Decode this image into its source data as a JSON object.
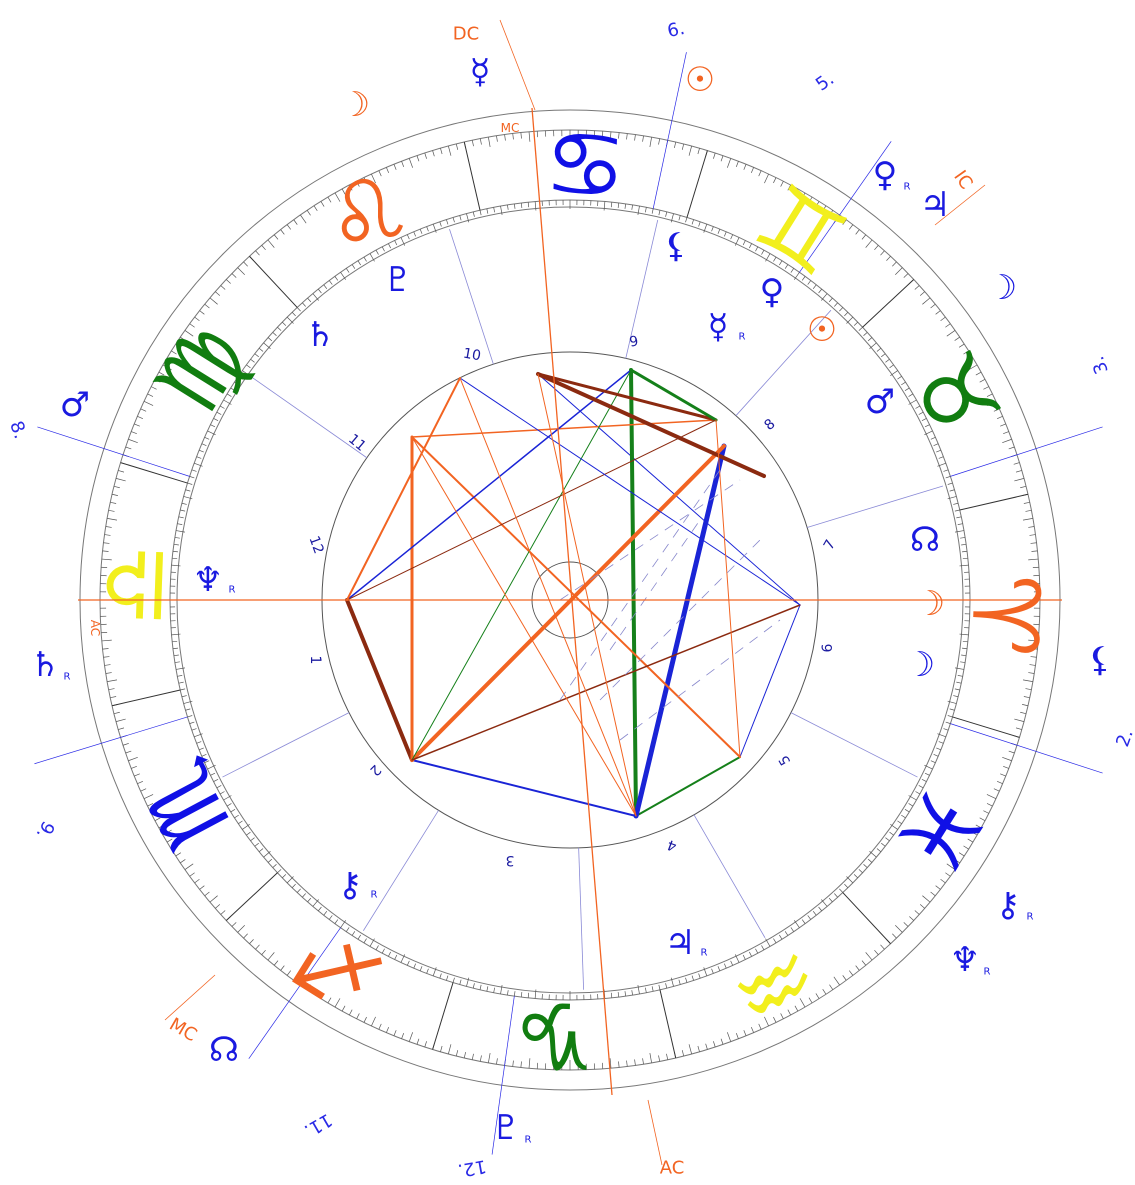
{
  "colors": {
    "fire": "#f26422",
    "earth": "#117d10",
    "air": "#f2ef1d",
    "water": "#1010e6",
    "angle": "#f26422",
    "outer_house": "#2a2ae6",
    "aspect_blue": "#1a24d6",
    "aspect_green": "#15801a",
    "aspect_orange": "#f26422",
    "aspect_brown": "#8b2a10",
    "tick": "#555555"
  },
  "zodiac": [
    {
      "sign": "Cancer",
      "glyph": "♋",
      "element": "water"
    },
    {
      "sign": "Gemini",
      "glyph": "♊",
      "element": "air"
    },
    {
      "sign": "Taurus",
      "glyph": "♉",
      "element": "earth"
    },
    {
      "sign": "Aries",
      "glyph": "♈",
      "element": "fire"
    },
    {
      "sign": "Pisces",
      "glyph": "♓",
      "element": "water"
    },
    {
      "sign": "Aquarius",
      "glyph": "♒",
      "element": "air"
    },
    {
      "sign": "Capricorn",
      "glyph": "♑",
      "element": "earth"
    },
    {
      "sign": "Sagittarius",
      "glyph": "♐",
      "element": "fire"
    },
    {
      "sign": "Scorpio",
      "glyph": "♏",
      "element": "water"
    },
    {
      "sign": "Libra",
      "glyph": "♎",
      "element": "air"
    },
    {
      "sign": "Virgo",
      "glyph": "♍",
      "element": "earth"
    },
    {
      "sign": "Leo",
      "glyph": "♌",
      "element": "fire"
    }
  ],
  "angles": {
    "inner_ac": "AC",
    "inner_mc": "MC",
    "outer_dc": "DC",
    "outer_ic": "IC",
    "outer_mc": "MC",
    "outer_ac": "AC"
  },
  "inner_houses": [
    "1",
    "2",
    "3",
    "4",
    "5",
    "6",
    "7",
    "8",
    "9",
    "10",
    "11",
    "12"
  ],
  "outer_houses": [
    "2.",
    "3.",
    "5.",
    "6.",
    "8.",
    "9.",
    "11.",
    "12."
  ],
  "planets_inner": [
    {
      "name": "Neptune",
      "glyph": "♆",
      "retro": "R"
    },
    {
      "name": "Saturn",
      "glyph": "♄",
      "retro": ""
    },
    {
      "name": "Pluto",
      "glyph": "♇",
      "retro": ""
    },
    {
      "name": "Mercury",
      "glyph": "☿",
      "retro": "R"
    },
    {
      "name": "Venus",
      "glyph": "♀",
      "retro": ""
    },
    {
      "name": "Sun",
      "glyph": "☉",
      "retro": ""
    },
    {
      "name": "Mars",
      "glyph": "♂",
      "retro": ""
    },
    {
      "name": "Node",
      "glyph": "☊",
      "retro": ""
    },
    {
      "name": "Moon",
      "glyph": "☽",
      "retro": ""
    },
    {
      "name": "Jupiter",
      "glyph": "♃",
      "retro": "R"
    },
    {
      "name": "Chiron",
      "glyph": "⚷",
      "retro": "R"
    },
    {
      "name": "Lilith",
      "glyph": "⚸",
      "retro": ""
    }
  ],
  "planets_outer": [
    {
      "name": "Mercury",
      "glyph": "☿",
      "retro": ""
    },
    {
      "name": "Sun",
      "glyph": "☉",
      "retro": ""
    },
    {
      "name": "Moon",
      "glyph": "☽",
      "retro": ""
    },
    {
      "name": "Venus",
      "glyph": "♀",
      "retro": "R"
    },
    {
      "name": "Jupiter",
      "glyph": "♃",
      "retro": ""
    },
    {
      "name": "Moon",
      "glyph": "☽",
      "retro": ""
    },
    {
      "name": "Moon",
      "glyph": "☽",
      "retro": ""
    },
    {
      "name": "Lilith",
      "glyph": "⚸",
      "retro": ""
    },
    {
      "name": "Chiron",
      "glyph": "⚷",
      "retro": "R"
    },
    {
      "name": "Neptune",
      "glyph": "♆",
      "retro": "R"
    },
    {
      "name": "Pluto",
      "glyph": "♇",
      "retro": "R"
    },
    {
      "name": "Node",
      "glyph": "☊",
      "retro": ""
    },
    {
      "name": "Saturn",
      "glyph": "♄",
      "retro": "R"
    },
    {
      "name": "Mars",
      "glyph": "♂",
      "retro": ""
    }
  ]
}
